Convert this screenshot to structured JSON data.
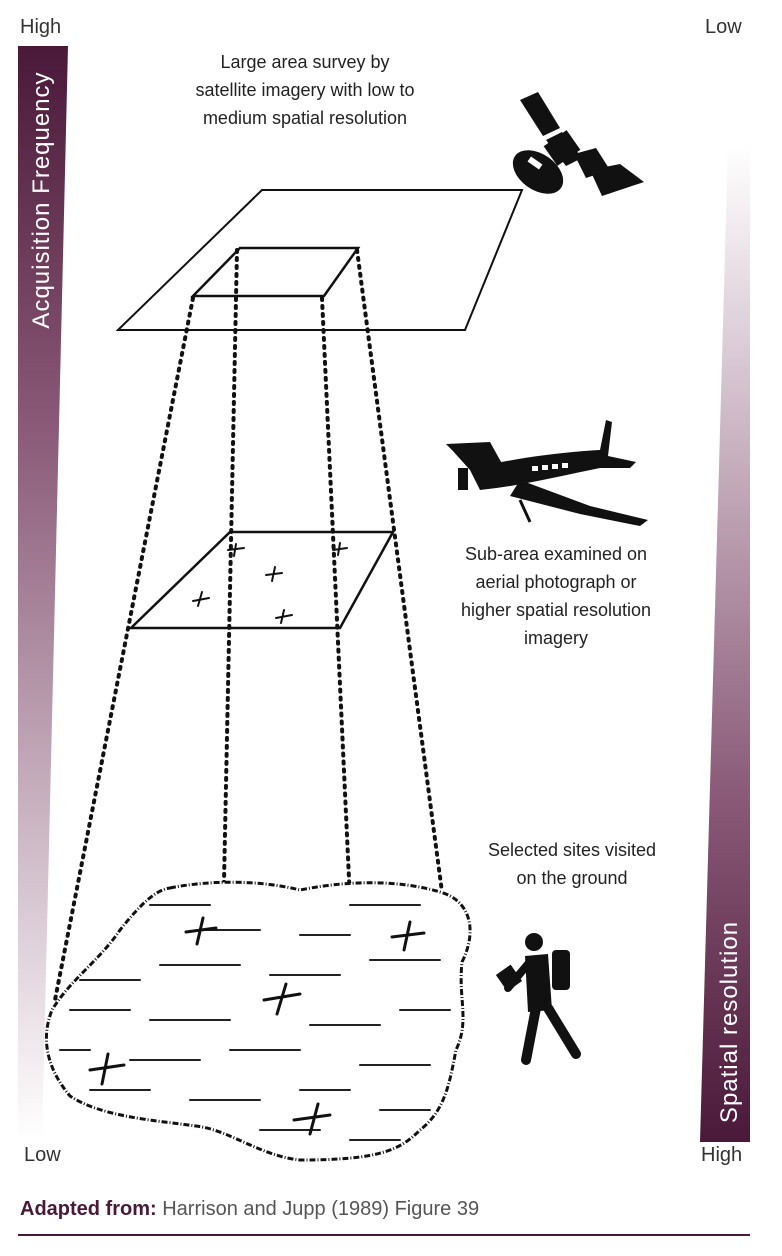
{
  "axis_labels": {
    "top_left": "High",
    "top_right": "Low",
    "bottom_left": "Low",
    "bottom_right": "High"
  },
  "bars": {
    "frequency": "Acquisition Frequency",
    "resolution": "Spatial resolution",
    "color": "#4a1838"
  },
  "captions": {
    "satellite": [
      "Large area survey by",
      "satellite imagery with low to",
      "medium spatial resolution"
    ],
    "aerial": [
      "Sub-area examined on",
      "aerial photograph or",
      "higher spatial resolution",
      "imagery"
    ],
    "ground": [
      "Selected sites visited",
      "on the ground"
    ]
  },
  "icons": [
    "satellite-icon",
    "airplane-icon",
    "hiker-icon"
  ],
  "source": {
    "prefix": "Adapted from:",
    "text": "Harrison and Jupp (1989) Figure 39"
  }
}
